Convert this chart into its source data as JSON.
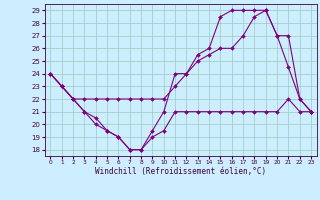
{
  "xlabel": "Windchill (Refroidissement éolien,°C)",
  "background_color": "#cceeff",
  "line_color": "#800080",
  "grid_color": "#99ccbb",
  "spine_color": "#440044",
  "xlim": [
    -0.5,
    23.5
  ],
  "ylim": [
    17.5,
    29.5
  ],
  "yticks": [
    18,
    19,
    20,
    21,
    22,
    23,
    24,
    25,
    26,
    27,
    28,
    29
  ],
  "xticks": [
    0,
    1,
    2,
    3,
    4,
    5,
    6,
    7,
    8,
    9,
    10,
    11,
    12,
    13,
    14,
    15,
    16,
    17,
    18,
    19,
    20,
    21,
    22,
    23
  ],
  "series1_x": [
    0,
    1,
    2,
    3,
    4,
    5,
    6,
    7,
    8,
    9,
    10,
    11,
    12,
    13,
    14,
    15,
    16,
    17,
    18,
    19,
    20,
    21,
    22,
    23
  ],
  "series1_y": [
    24,
    23,
    22,
    21,
    20.5,
    19.5,
    19,
    18,
    18,
    19,
    19.5,
    21,
    21,
    21,
    21,
    21,
    21,
    21,
    21,
    21,
    21,
    22,
    21,
    21
  ],
  "series2_x": [
    0,
    1,
    2,
    3,
    4,
    5,
    6,
    7,
    8,
    9,
    10,
    11,
    12,
    13,
    14,
    15,
    16,
    17,
    18,
    19,
    20,
    21,
    22,
    23
  ],
  "series2_y": [
    24,
    23,
    22,
    22,
    22,
    22,
    22,
    22,
    22,
    22,
    22,
    23,
    24,
    25,
    25.5,
    26,
    26,
    27,
    28.5,
    29,
    27,
    24.5,
    22,
    21
  ],
  "series3_x": [
    0,
    1,
    2,
    3,
    4,
    5,
    6,
    7,
    8,
    9,
    10,
    11,
    12,
    13,
    14,
    15,
    16,
    17,
    18,
    19,
    20,
    21,
    22,
    23
  ],
  "series3_y": [
    24,
    23,
    22,
    21,
    20,
    19.5,
    19,
    18,
    18,
    19.5,
    21,
    24,
    24,
    25.5,
    26,
    28.5,
    29,
    29,
    29,
    29,
    27,
    27,
    22,
    21
  ],
  "tick_fontsize": 5,
  "xlabel_fontsize": 5.5,
  "marker_size": 2.0,
  "line_width": 0.8
}
